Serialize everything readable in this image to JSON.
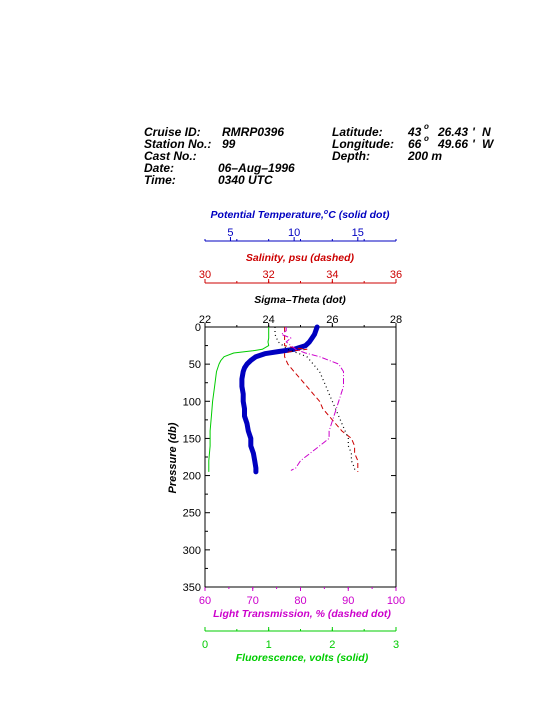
{
  "header": {
    "cruise_label": "Cruise ID:",
    "cruise_value": "RMRP0396",
    "station_label": "Station No.:",
    "station_value": "99",
    "cast_label": "Cast No.:",
    "cast_value": "",
    "date_label": "Date:",
    "date_value": "06–Aug–1996",
    "time_label": "Time:",
    "time_value": "0340 UTC",
    "lat_label": "Latitude:",
    "lat_deg": "43",
    "lat_min": "26.43",
    "lat_hemi": "N",
    "lon_label": "Longitude:",
    "lon_deg": "66",
    "lon_min": "49.66",
    "lon_hemi": "W",
    "depth_label": "Depth:",
    "depth_value": "200 m",
    "deg_symbol": "o",
    "min_symbol": "'"
  },
  "chart_data": {
    "type": "line",
    "ylabel": "Pressure (db)",
    "ylim": [
      350,
      0
    ],
    "yticks": [
      0,
      50,
      100,
      150,
      200,
      250,
      300,
      350
    ],
    "axes": {
      "temperature": {
        "title_main": "Potential Temperature,",
        "title_sup": "o",
        "title_unit": "C (solid dot)",
        "range": [
          3,
          18
        ],
        "ticks": [
          5,
          10,
          15
        ],
        "color": "#0000c0"
      },
      "salinity": {
        "title": "Salinity, psu  (dashed)",
        "range": [
          30,
          36
        ],
        "ticks": [
          30,
          32,
          34,
          36
        ],
        "color": "#cc0000"
      },
      "sigma": {
        "title": "Sigma–Theta (dot)",
        "range": [
          22,
          28
        ],
        "ticks": [
          22,
          24,
          26,
          28
        ],
        "color": "#000000"
      },
      "transmission": {
        "title": "Light Transmission, % (dashed dot)",
        "range": [
          60,
          100
        ],
        "ticks": [
          60,
          70,
          80,
          90,
          100
        ],
        "color": "#cc00cc"
      },
      "fluorescence": {
        "title": "Fluorescence, volts (solid)",
        "range": [
          0,
          3
        ],
        "ticks": [
          0,
          1,
          2,
          3
        ],
        "color": "#00cc00"
      }
    },
    "series": [
      {
        "key": "temperature",
        "pressure": [
          0,
          5,
          10,
          15,
          20,
          25,
          30,
          33,
          36,
          40,
          45,
          50,
          55,
          60,
          70,
          80,
          90,
          100,
          110,
          120,
          130,
          140,
          150,
          160,
          170,
          180,
          190,
          195
        ],
        "values": [
          11.8,
          11.7,
          11.6,
          11.4,
          11.2,
          10.9,
          10.0,
          8.8,
          7.7,
          7.0,
          6.6,
          6.3,
          6.1,
          6.0,
          5.9,
          5.9,
          6.0,
          6.0,
          6.1,
          6.1,
          6.3,
          6.4,
          6.6,
          6.6,
          6.8,
          6.9,
          7.0,
          7.0
        ]
      },
      {
        "key": "salinity",
        "pressure": [
          0,
          5,
          10,
          15,
          20,
          25,
          28,
          30,
          32,
          35,
          40,
          50,
          60,
          80,
          90,
          100,
          110,
          120,
          130,
          140,
          150,
          160,
          170,
          180,
          190,
          195
        ],
        "values": [
          32.5,
          32.5,
          32.5,
          32.5,
          32.5,
          32.5,
          32.8,
          33.2,
          32.8,
          32.5,
          32.5,
          32.6,
          32.8,
          33.2,
          33.4,
          33.6,
          33.7,
          33.9,
          34.1,
          34.3,
          34.6,
          34.7,
          34.7,
          34.8,
          34.8,
          34.8
        ]
      },
      {
        "key": "sigma",
        "pressure": [
          0,
          10,
          20,
          30,
          40,
          50,
          60,
          70,
          80,
          90,
          100,
          110,
          120,
          130,
          140,
          150,
          160,
          170,
          180,
          190,
          195
        ],
        "values": [
          24.2,
          24.2,
          24.3,
          24.6,
          25.2,
          25.4,
          25.6,
          25.7,
          25.8,
          25.9,
          26.0,
          26.1,
          26.2,
          26.3,
          26.4,
          26.5,
          26.5,
          26.6,
          26.6,
          26.7,
          26.7
        ]
      },
      {
        "key": "transmission",
        "pressure": [
          0,
          5,
          10,
          15,
          20,
          25,
          30,
          35,
          40,
          50,
          60,
          80,
          100,
          120,
          140,
          150,
          155,
          160,
          170,
          180,
          190,
          193
        ],
        "values": [
          77,
          77,
          76,
          78,
          77,
          78,
          79,
          81,
          84,
          88,
          89,
          89,
          88,
          87,
          86,
          86,
          85,
          84,
          82,
          80,
          79,
          78
        ]
      },
      {
        "key": "fluorescence",
        "pressure": [
          0,
          5,
          10,
          15,
          20,
          25,
          30,
          32,
          35,
          40,
          45,
          50,
          60,
          80,
          100,
          120,
          140,
          160,
          180,
          190,
          195
        ],
        "values": [
          1.0,
          1.0,
          1.0,
          1.0,
          0.99,
          1.0,
          0.9,
          0.75,
          0.45,
          0.3,
          0.25,
          0.22,
          0.18,
          0.15,
          0.12,
          0.1,
          0.08,
          0.08,
          0.06,
          0.06,
          0.06
        ]
      }
    ]
  }
}
